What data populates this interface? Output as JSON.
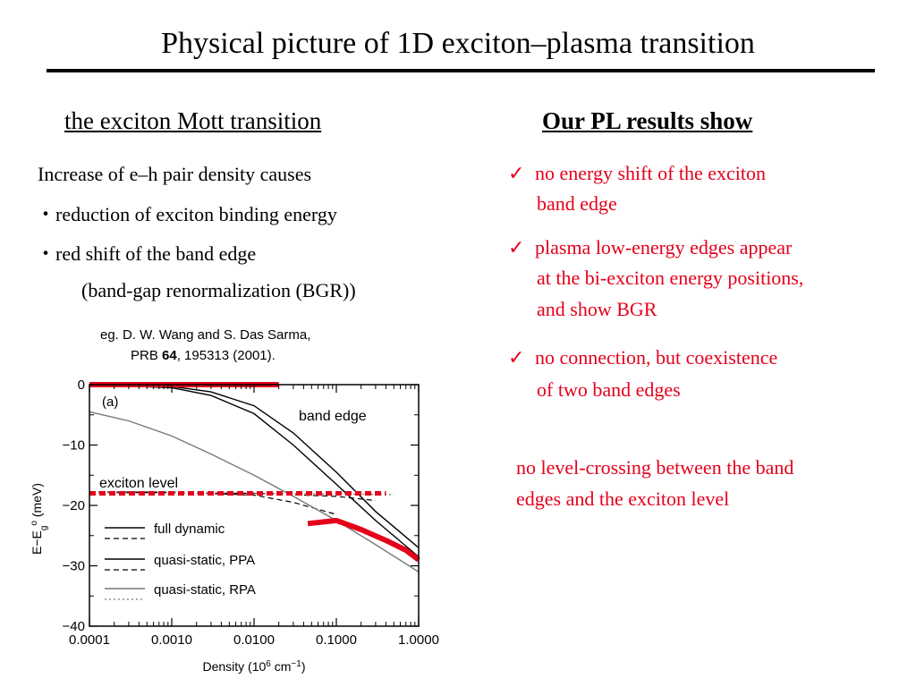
{
  "slide": {
    "title": "Physical picture of 1D exciton–plasma transition",
    "left": {
      "heading": "the exciton Mott transition",
      "intro": "Increase of e–h pair density causes",
      "bullets": [
        "・reduction of exciton binding energy",
        "・red shift of the band edge"
      ],
      "bgr_note": "(band-gap renormalization (BGR))",
      "ref_line1": "eg.  D. W. Wang and S. Das Sarma,",
      "ref_prb": "PRB ",
      "ref_vol": "64",
      "ref_rest": ", 195313 (2001)."
    },
    "right": {
      "heading": "Our PL results show",
      "checkmark": "✓",
      "items": [
        {
          "line1": "no energy shift of the exciton",
          "line2": "band edge"
        },
        {
          "line1": "plasma low-energy edges appear",
          "line2": "at the bi-exciton energy positions,",
          "line3": "and show BGR"
        },
        {
          "line1": "no connection, but coexistence",
          "line2": "of  two band edges"
        }
      ],
      "conclusion_line1": "no level-crossing between the band",
      "conclusion_line2": "edges and the exciton level"
    },
    "colors": {
      "accent_red": "#e4001b",
      "text": "#000000"
    }
  },
  "chart_data": {
    "type": "line",
    "panel_label": "(a)",
    "xlabel": "Density (10^6 cm^-1)",
    "ylabel": "E-E_g^0 (meV)",
    "x_scale": "log",
    "xlim": [
      0.0001,
      1.0
    ],
    "ylim": [
      -40,
      0
    ],
    "x_tick_labels": [
      "0.0001",
      "0.0010",
      "0.0100",
      "0.1000",
      "1.0000"
    ],
    "y_tick_labels": [
      "0",
      "-10",
      "-20",
      "-30",
      "-40"
    ],
    "legend": [
      "full dynamic",
      "quasi-static, PPA",
      "quasi-static, RPA"
    ],
    "annotations": {
      "band_edge": "band edge",
      "exciton_level": "exciton level"
    },
    "series": [
      {
        "name": "full dynamic",
        "style": "solid",
        "x": [
          0.0001,
          0.001,
          0.003,
          0.01,
          0.03,
          0.1,
          0.3,
          1.0
        ],
        "y": [
          0,
          -0.3,
          -1.2,
          -3.5,
          -8,
          -14.5,
          -21,
          -27
        ]
      },
      {
        "name": "full dynamic",
        "style": "dashed",
        "x": [
          0.0001,
          0.001,
          0.01,
          0.03,
          0.1
        ],
        "y": [
          -17.8,
          -17.8,
          -18.3,
          -19.5,
          -21.5
        ]
      },
      {
        "name": "quasi-static, PPA",
        "style": "solid",
        "x": [
          0.0001,
          0.001,
          0.003,
          0.01,
          0.03,
          0.1,
          0.3,
          1.0
        ],
        "y": [
          0,
          -0.5,
          -1.8,
          -4.8,
          -10,
          -16.5,
          -22.5,
          -28.5
        ]
      },
      {
        "name": "quasi-static, PPA",
        "style": "dashed",
        "x": [
          0.0001,
          0.001,
          0.01,
          0.1,
          0.3
        ],
        "y": [
          -17.9,
          -17.9,
          -18,
          -18.5,
          -19.2
        ]
      },
      {
        "name": "quasi-static, RPA",
        "style": "solid",
        "x": [
          0.0001,
          0.0003,
          0.001,
          0.003,
          0.01,
          0.03,
          0.1,
          0.3,
          1.0
        ],
        "y": [
          -4.5,
          -6,
          -8.5,
          -11.5,
          -15,
          -18.5,
          -22.5,
          -26.5,
          -31
        ]
      },
      {
        "name": "quasi-static, RPA",
        "style": "dotted",
        "x": [
          0.0001,
          0.001,
          0.01,
          0.1,
          0.5
        ],
        "y": [
          -17.9,
          -17.9,
          -18,
          -18.1,
          -18.2
        ]
      },
      {
        "name": "band edge",
        "style": "overlay-red-solid",
        "x": [
          0.0001,
          0.02
        ],
        "y": [
          0,
          0
        ]
      },
      {
        "name": "exciton level",
        "style": "overlay-red-dotted",
        "x": [
          0.0001,
          0.4
        ],
        "y": [
          -18,
          -18
        ]
      },
      {
        "name": "plasma edge",
        "style": "overlay-red-thick",
        "x": [
          0.045,
          0.1,
          0.2,
          0.4,
          0.7,
          1.0
        ],
        "y": [
          -23,
          -22.5,
          -24,
          -25.8,
          -27.4,
          -29
        ]
      }
    ]
  }
}
